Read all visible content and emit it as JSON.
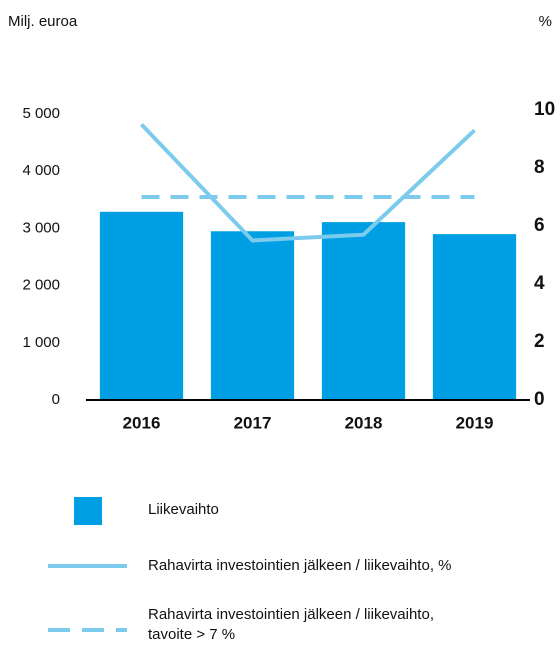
{
  "chart_data": {
    "type": "bar",
    "ylabel": "Milj. euroa",
    "y2label": "%",
    "categories": [
      "2016",
      "2017",
      "2018",
      "2019"
    ],
    "ylim": [
      0,
      5000
    ],
    "yticks": [
      0,
      {
        "value": 1000,
        "label": "1 000"
      },
      {
        "value": 2000,
        "label": "2 000"
      },
      {
        "value": 3000,
        "label": "3 000"
      },
      {
        "value": 4000,
        "label": "4 000"
      },
      {
        "value": 5000,
        "label": "5 000"
      }
    ],
    "y2lim": [
      0,
      10
    ],
    "y2ticks": [
      0,
      2,
      4,
      6,
      8,
      10
    ],
    "series": [
      {
        "name": "Liikevaihto",
        "type": "bar",
        "color": "#009fe3",
        "values": [
          3290,
          2950,
          3110,
          2900
        ]
      },
      {
        "name": "Rahavirta investointien jälkeen / liikevaihto, %",
        "type": "line",
        "axis": "y2",
        "color": "#7ccbed",
        "values": [
          9.5,
          5.5,
          5.7,
          9.3
        ]
      },
      {
        "name": "Rahavirta investointien jälkeen / liikevaihto,\ntavoite > 7 %",
        "type": "line",
        "axis": "y2",
        "dashed": true,
        "color": "#7ccbed",
        "values": [
          7,
          7,
          7,
          7
        ]
      }
    ]
  }
}
